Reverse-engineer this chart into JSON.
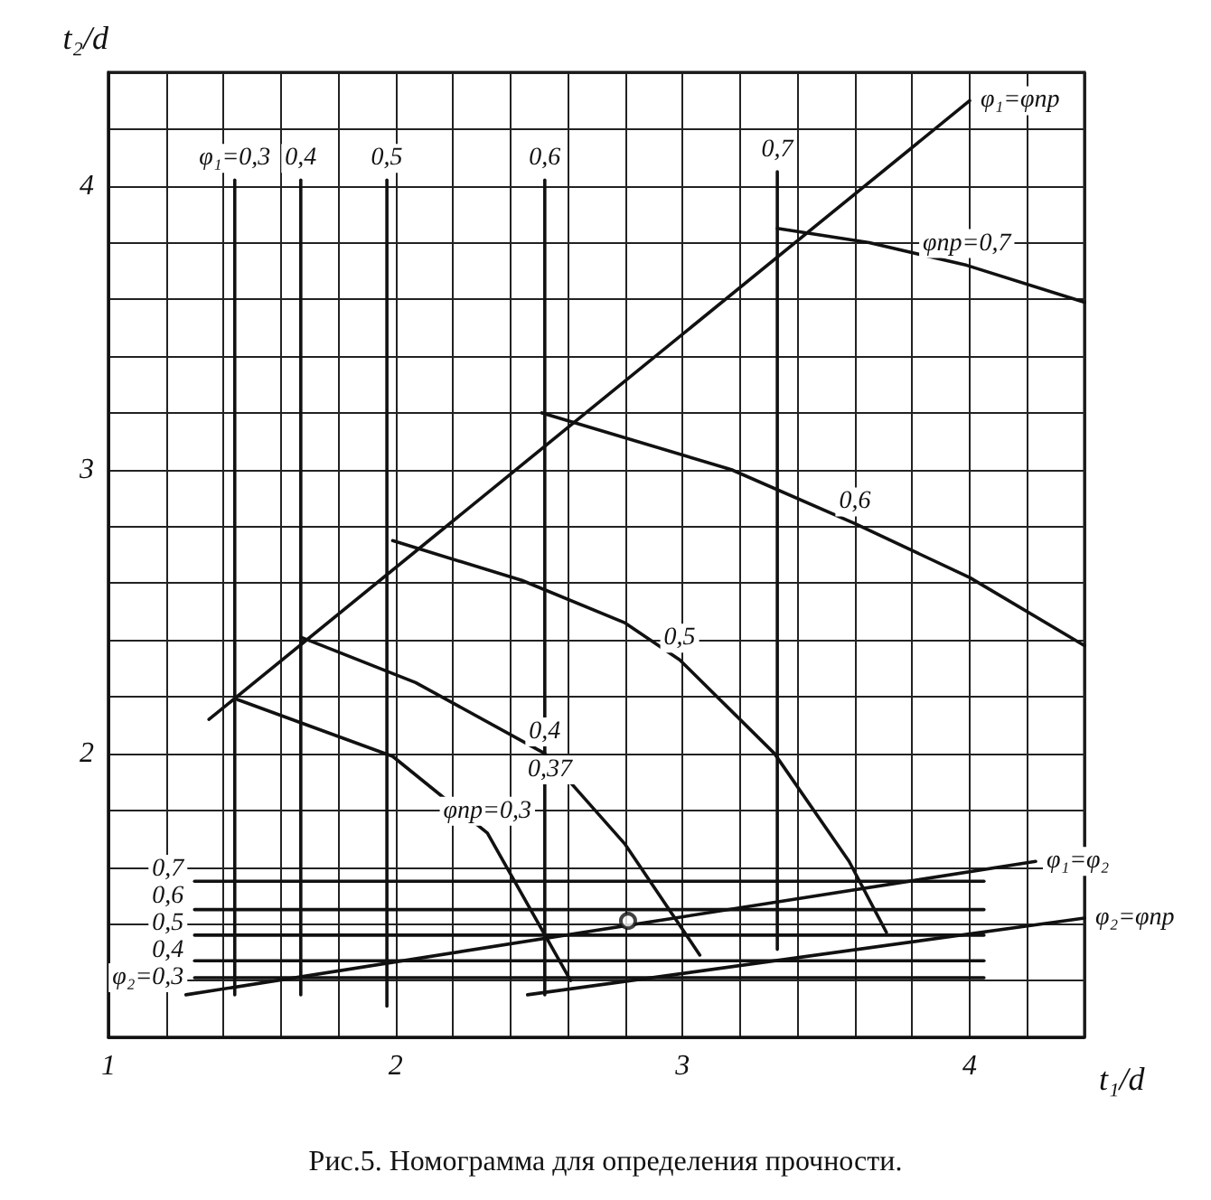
{
  "chart_data": {
    "type": "line",
    "title": "Рис.5. Номограмма для определения прочности.",
    "xlabel": "t₁/d",
    "ylabel": "t₂/d",
    "xlim": [
      1,
      4.4
    ],
    "ylim": [
      1,
      4.4
    ],
    "xticks": [
      1,
      {
        "value": 1.2,
        "label": null
      },
      {
        "value": 1.4,
        "label": null
      },
      {
        "value": 1.6,
        "label": null
      },
      {
        "value": 1.8,
        "label": null
      },
      2,
      {
        "value": 2.2,
        "label": null
      },
      {
        "value": 2.4,
        "label": null
      },
      {
        "value": 2.6,
        "label": null
      },
      {
        "value": 2.8,
        "label": null
      },
      3,
      {
        "value": 3.2,
        "label": null
      },
      {
        "value": 3.4,
        "label": null
      },
      {
        "value": 3.6,
        "label": null
      },
      {
        "value": 3.8,
        "label": null
      },
      4,
      {
        "value": 4.2,
        "label": null
      },
      {
        "value": 4.4,
        "label": null
      }
    ],
    "yticks": [
      {
        "value": 1,
        "label": null
      },
      {
        "value": 1.2,
        "label": null
      },
      {
        "value": 1.4,
        "label": null
      },
      {
        "value": 1.6,
        "label": null
      },
      {
        "value": 1.8,
        "label": null
      },
      2,
      {
        "value": 2.2,
        "label": null
      },
      {
        "value": 2.4,
        "label": null
      },
      {
        "value": 2.6,
        "label": null
      },
      {
        "value": 2.8,
        "label": null
      },
      3,
      {
        "value": 3.2,
        "label": null
      },
      {
        "value": 3.4,
        "label": null
      },
      {
        "value": 3.6,
        "label": null
      },
      {
        "value": 3.8,
        "label": null
      },
      4,
      {
        "value": 4.2,
        "label": null
      },
      {
        "value": 4.4,
        "label": null
      }
    ],
    "grid": true,
    "marker": "none",
    "line_style": "solid",
    "series": [
      {
        "name": "φ₁=φпр",
        "color": "#111111",
        "x": [
          1.35,
          4.0
        ],
        "values": [
          2.12,
          4.3
        ]
      },
      {
        "name": "φпр=0,7",
        "color": "#111111",
        "x": [
          3.33,
          3.65,
          3.99,
          4.4
        ],
        "values": [
          3.85,
          3.8,
          3.72,
          3.59
        ]
      },
      {
        "name": "0,6",
        "color": "#111111",
        "x": [
          2.51,
          3.17,
          3.6,
          4.0,
          4.4
        ],
        "values": [
          3.2,
          3.0,
          2.81,
          2.62,
          2.38
        ]
      },
      {
        "name": "0,5",
        "color": "#111111",
        "x": [
          1.99,
          2.44,
          2.8,
          2.99,
          3.32,
          3.58,
          3.71
        ],
        "values": [
          2.75,
          2.61,
          2.46,
          2.33,
          2.0,
          1.62,
          1.37
        ]
      },
      {
        "name": "0,4",
        "color": "#111111",
        "x": [
          1.67,
          2.07,
          2.52,
          2.8,
          3.06
        ],
        "values": [
          2.41,
          2.25,
          2.0,
          1.68,
          1.29
        ]
      },
      {
        "name": "φпр=0,3",
        "color": "#111111",
        "x": [
          1.45,
          1.99,
          2.32,
          2.61
        ],
        "values": [
          2.19,
          1.99,
          1.72,
          1.2
        ]
      },
      {
        "name": "φ₁=φ₂",
        "color": "#111111",
        "x": [
          1.27,
          4.23
        ],
        "values": [
          1.15,
          1.62
        ]
      },
      {
        "name": "φ₂=φпр",
        "color": "#111111",
        "x": [
          2.46,
          4.4
        ],
        "values": [
          1.15,
          1.42
        ]
      },
      {
        "type": "scatter",
        "marker": "circle",
        "color": "#111111",
        "x": [
          2.81
        ],
        "values": [
          1.41
        ]
      },
      {
        "name": "φ₁=0,3",
        "color": "#111111",
        "x": [
          1.44,
          1.44
        ],
        "values": [
          1.15,
          4.02
        ]
      },
      {
        "name": "0,4",
        "color": "#111111",
        "x": [
          1.67,
          1.67
        ],
        "values": [
          1.15,
          4.02
        ]
      },
      {
        "name": "0,5",
        "color": "#111111",
        "x": [
          1.97,
          1.97
        ],
        "values": [
          1.11,
          4.02
        ]
      },
      {
        "name": "0,6",
        "color": "#111111",
        "x": [
          2.52,
          2.52
        ],
        "values": [
          1.15,
          4.02
        ]
      },
      {
        "name": "0,7",
        "color": "#111111",
        "x": [
          3.33,
          3.33
        ],
        "values": [
          1.31,
          4.05
        ]
      },
      {
        "name": "0,7",
        "color": "#111111",
        "x": [
          1.3,
          4.05
        ],
        "values": [
          1.55,
          1.55
        ]
      },
      {
        "name": "0,6",
        "color": "#111111",
        "x": [
          1.3,
          4.05
        ],
        "values": [
          1.45,
          1.45
        ]
      },
      {
        "name": "0,5",
        "color": "#111111",
        "x": [
          1.3,
          4.05
        ],
        "values": [
          1.36,
          1.36
        ]
      },
      {
        "name": "0,4",
        "color": "#111111",
        "x": [
          1.3,
          4.05
        ],
        "values": [
          1.27,
          1.27
        ]
      },
      {
        "name": "φ₂=0,3",
        "color": "#111111",
        "x": [
          1.3,
          4.05
        ],
        "values": [
          1.21,
          1.21
        ]
      }
    ],
    "annotations": [
      "0,37"
    ]
  }
}
